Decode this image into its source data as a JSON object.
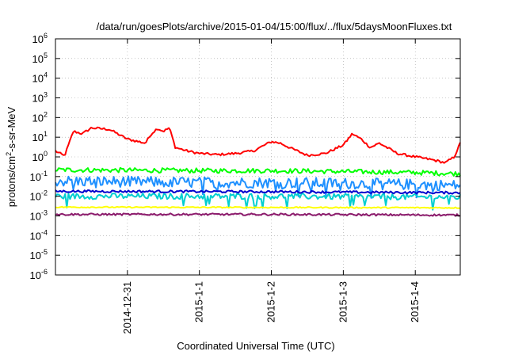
{
  "chart_data": {
    "type": "line",
    "title": "/data/run/goesPlots/archive/2015-01-04/15:00/flux/../flux/5daysMoonFluxes.txt",
    "xlabel": "Coordinated Universal Time (UTC)",
    "ylabel": {
      "pre": "protons/cm",
      "sup": "2",
      "post": "-s-sr-MeV"
    },
    "yscale": "log",
    "ylim": [
      1e-06,
      1000000.0
    ],
    "xlim": [
      "2014-12-30 00:00",
      "2015-01-04 15:00"
    ],
    "grid": true,
    "legend": "none",
    "y_ticks": [
      {
        "value": 1e-06,
        "exp": "-6"
      },
      {
        "value": 1e-05,
        "exp": "-5"
      },
      {
        "value": 0.0001,
        "exp": "-4"
      },
      {
        "value": 0.001,
        "exp": "-3"
      },
      {
        "value": 0.01,
        "exp": "-2"
      },
      {
        "value": 0.1,
        "exp": "-1"
      },
      {
        "value": 1,
        "exp": "0"
      },
      {
        "value": 10,
        "exp": "1"
      },
      {
        "value": 100,
        "exp": "2"
      },
      {
        "value": 1000,
        "exp": "3"
      },
      {
        "value": 10000,
        "exp": "4"
      },
      {
        "value": 100000,
        "exp": "5"
      },
      {
        "value": 1000000,
        "exp": "6"
      }
    ],
    "x_ticks": [
      {
        "date": "2014-12-31 00:00",
        "label": "2014-12-31"
      },
      {
        "date": "2015-01-01 00:00",
        "label": "2015-1-1"
      },
      {
        "date": "2015-01-02 00:00",
        "label": "2015-1-2"
      },
      {
        "date": "2015-01-03 00:00",
        "label": "2015-1-3"
      },
      {
        "date": "2015-01-04 00:00",
        "label": "2015-1-4"
      }
    ],
    "series": [
      {
        "color": "#ff0000",
        "noise": 0.06,
        "x": [
          "2014-12-30 00:00",
          "2014-12-30 03:00",
          "2014-12-30 06:00",
          "2014-12-30 09:00",
          "2014-12-30 12:00",
          "2014-12-30 18:00",
          "2014-12-31 00:00",
          "2014-12-31 06:00",
          "2014-12-31 08:00",
          "2014-12-31 10:00",
          "2014-12-31 12:00",
          "2014-12-31 14:00",
          "2014-12-31 16:00",
          "2014-12-31 20:00",
          "2015-01-01 00:00",
          "2015-01-01 06:00",
          "2015-01-01 12:00",
          "2015-01-01 18:00",
          "2015-01-02 00:00",
          "2015-01-02 03:00",
          "2015-01-02 06:00",
          "2015-01-02 12:00",
          "2015-01-02 18:00",
          "2015-01-03 00:00",
          "2015-01-03 03:00",
          "2015-01-03 06:00",
          "2015-01-03 09:00",
          "2015-01-03 12:00",
          "2015-01-03 18:00",
          "2015-01-04 00:00",
          "2015-01-04 06:00",
          "2015-01-04 10:00",
          "2015-01-04 13:00",
          "2015-01-04 15:00"
        ],
        "values": [
          2,
          1.1,
          20,
          15,
          30,
          25,
          8,
          5,
          15,
          28,
          20,
          30,
          3,
          2,
          1.5,
          1.3,
          1.5,
          2,
          6,
          5,
          3,
          1.2,
          1.5,
          4,
          15,
          8,
          3,
          5,
          1.5,
          1,
          0.7,
          0.5,
          1,
          5
        ]
      },
      {
        "color": "#00ff00",
        "noise": 0.12,
        "x": [
          "2014-12-30 00:00",
          "2015-01-01 00:00",
          "2015-01-02 00:00",
          "2015-01-03 00:00",
          "2015-01-04 00:00",
          "2015-01-04 15:00"
        ],
        "values": [
          0.22,
          0.2,
          0.2,
          0.18,
          0.16,
          0.14
        ]
      },
      {
        "color": "#1e90ff",
        "noise": 0.28,
        "x": [
          "2014-12-30 00:00",
          "2015-01-01 00:00",
          "2015-01-02 00:00",
          "2015-01-03 00:00",
          "2015-01-04 00:00",
          "2015-01-04 15:00"
        ],
        "values": [
          0.06,
          0.05,
          0.05,
          0.045,
          0.04,
          0.035
        ]
      },
      {
        "color": "#00ced1",
        "noise": 0.15,
        "x": [
          "2014-12-30 00:00",
          "2015-01-02 00:00",
          "2015-01-04 15:00"
        ],
        "values": [
          0.01,
          0.01,
          0.009
        ]
      },
      {
        "color": "#0000cd",
        "noise": 0.06,
        "x": [
          "2014-12-30 00:00",
          "2015-01-02 00:00",
          "2015-01-04 15:00"
        ],
        "values": [
          0.018,
          0.017,
          0.015
        ]
      },
      {
        "color": "#ffff00",
        "noise": 0.03,
        "x": [
          "2014-12-30 00:00",
          "2015-01-02 00:00",
          "2015-01-04 15:00"
        ],
        "values": [
          0.0028,
          0.0027,
          0.0026
        ]
      },
      {
        "color": "#8b1a6b",
        "noise": 0.05,
        "x": [
          "2014-12-30 00:00",
          "2015-01-02 00:00",
          "2015-01-04 15:00"
        ],
        "values": [
          0.0012,
          0.0012,
          0.0011
        ]
      }
    ]
  }
}
